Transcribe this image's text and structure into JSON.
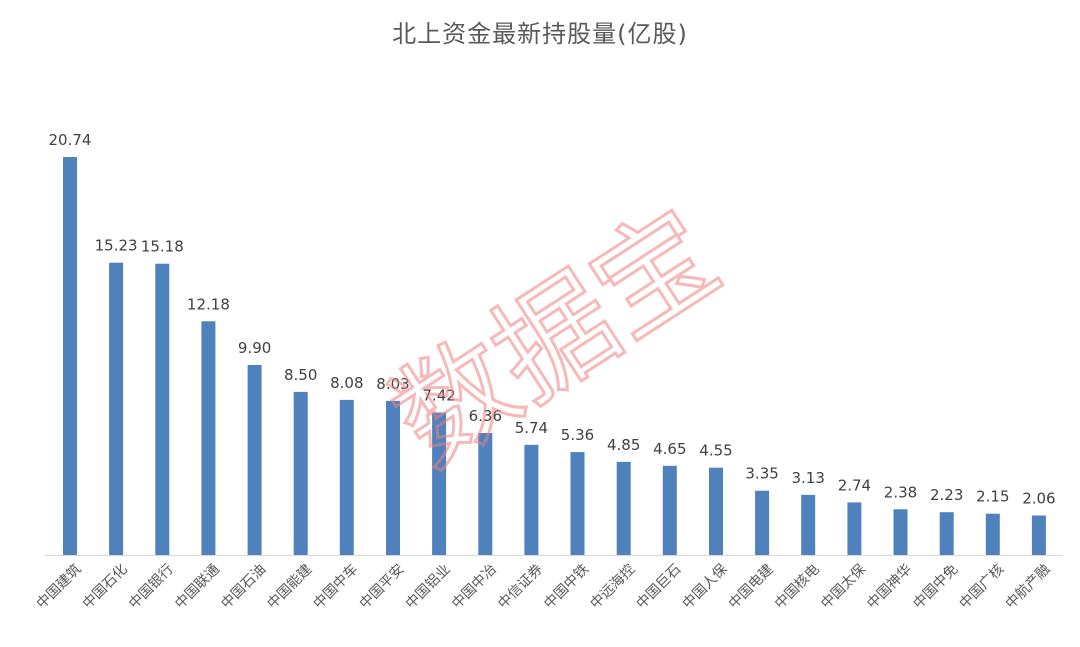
{
  "chart_data": {
    "type": "bar",
    "title": "北上资金最新持股量(亿股)",
    "xlabel": "",
    "ylabel": "",
    "ylim": [
      0,
      22
    ],
    "grid": false,
    "categories": [
      "中国建筑",
      "中国石化",
      "中国银行",
      "中国联通",
      "中国石油",
      "中国能建",
      "中国中车",
      "中国平安",
      "中国铝业",
      "中国中冶",
      "中信证券",
      "中国中铁",
      "中远海控",
      "中国巨石",
      "中国人保",
      "中国电建",
      "中国核电",
      "中国太保",
      "中国神华",
      "中国中免",
      "中国广核",
      "中航产融"
    ],
    "values": [
      20.74,
      15.23,
      15.18,
      12.18,
      9.9,
      8.5,
      8.08,
      8.03,
      7.42,
      6.36,
      5.74,
      5.36,
      4.85,
      4.65,
      4.55,
      3.35,
      3.13,
      2.74,
      2.38,
      2.23,
      2.15,
      2.06
    ],
    "value_labels": [
      "20.74",
      "15.23",
      "15.18",
      "12.18",
      "9.90",
      "8.50",
      "8.08",
      "8.03",
      "7.42",
      "6.36",
      "5.74",
      "5.36",
      "4.85",
      "4.65",
      "4.55",
      "3.35",
      "3.13",
      "2.74",
      "2.38",
      "2.23",
      "2.15",
      "2.06"
    ],
    "bar_color": "#4F81BD",
    "watermark": {
      "text": "数据宝",
      "color": "#F08080"
    }
  }
}
